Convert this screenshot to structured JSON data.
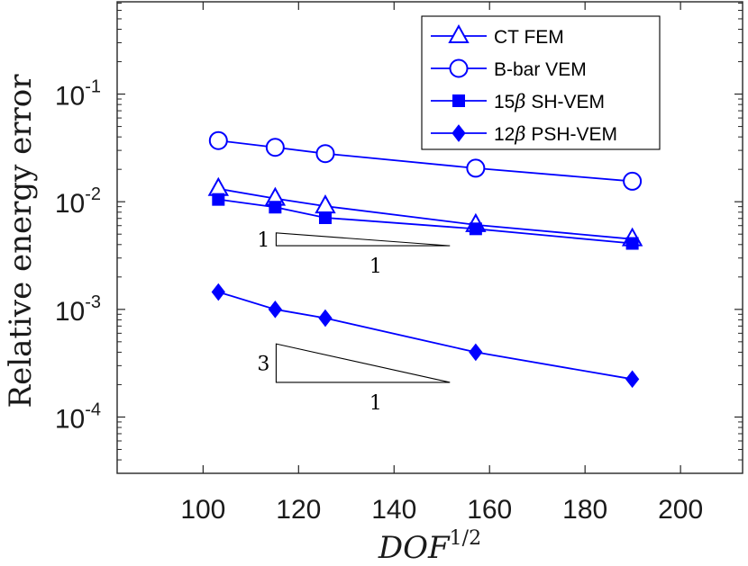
{
  "chart_data": {
    "type": "line",
    "x_scale": "linear",
    "y_scale": "log",
    "xlabel_base": "DOF",
    "xlabel_exponent": "1/2",
    "ylabel": "Relative energy error",
    "xlim": [
      82,
      213
    ],
    "ylim": [
      3e-05,
      0.72
    ],
    "xticks": [
      100,
      120,
      140,
      160,
      180,
      200
    ],
    "xtick_labels": [
      "100",
      "120",
      "140",
      "160",
      "180",
      "200"
    ],
    "yticks": [
      0.1,
      0.01,
      0.001,
      0.0001
    ],
    "ytick_labels": [
      {
        "base": "10",
        "exp": "-1"
      },
      {
        "base": "10",
        "exp": "-2"
      },
      {
        "base": "10",
        "exp": "-3"
      },
      {
        "base": "10",
        "exp": "-4"
      }
    ],
    "x": [
      103.2,
      115.1,
      125.6,
      157.1,
      189.9
    ],
    "series": [
      {
        "name": "CT FEM",
        "marker": "triangle-open",
        "values": [
          0.0132,
          0.0107,
          0.0091,
          0.0061,
          0.0045
        ]
      },
      {
        "name": "B-bar VEM",
        "marker": "circle-open",
        "values": [
          0.037,
          0.032,
          0.028,
          0.0205,
          0.0155
        ]
      },
      {
        "name": "15β SH-VEM",
        "marker": "square-filled",
        "values": [
          0.0105,
          0.0089,
          0.0071,
          0.0056,
          0.0041
        ]
      },
      {
        "name": "12β PSH-VEM",
        "marker": "diamond-filled",
        "values": [
          0.00145,
          0.001,
          0.00083,
          0.0004,
          0.000225
        ]
      }
    ],
    "legend": {
      "placement": "top-right",
      "entries": [
        {
          "prefix": "CT FEM",
          "greek": "",
          "suffix": ""
        },
        {
          "prefix": "B-bar VEM",
          "greek": "",
          "suffix": ""
        },
        {
          "prefix": "15",
          "greek": "β",
          "suffix": " SH-VEM"
        },
        {
          "prefix": "12",
          "greek": "β",
          "suffix": " PSH-VEM"
        }
      ]
    },
    "slope_triangles": [
      {
        "rise_label": "1",
        "run_label": "1",
        "slope": 1,
        "x_start": 115.3,
        "x_end": 151.7,
        "y_base": 0.0039
      },
      {
        "rise_label": "3",
        "run_label": "1",
        "slope": 3,
        "x_start": 115.3,
        "x_end": 151.7,
        "y_base": 0.00021
      }
    ],
    "series_color": "#0000ff",
    "axis_color": "#262626"
  }
}
